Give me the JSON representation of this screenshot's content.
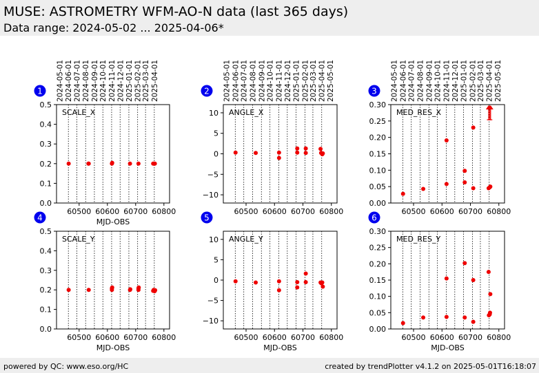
{
  "header": {
    "title": "MUSE: ASTROMETRY WFM-AO-N data (last 365 days)",
    "subtitle": "Data range: 2024-05-02 ... 2025-04-06*"
  },
  "footer": {
    "left": "powered by QC: www.eso.org/HC",
    "right": "created by trendPlotter v4.1.2 on 2025-05-01T16:18:07"
  },
  "colors": {
    "marker": "#ee0000",
    "badge": "#0000ee",
    "header_bg": "#eeeeee"
  },
  "chart_data": [
    {
      "type": "scatter",
      "badge": "1",
      "label": "SCALE_X",
      "xlabel": "MJD-OBS",
      "xlim": [
        60420,
        60820
      ],
      "xticks": [
        60500,
        60600,
        60700,
        60800
      ],
      "ylim": [
        0,
        0.5
      ],
      "yticks": [
        "0.0",
        "0.1",
        "0.2",
        "0.3",
        "0.4",
        "0.5"
      ],
      "date_ticks": [
        {
          "label": "2024-05-01",
          "mjd": 60431
        },
        {
          "label": "2024-06-01",
          "mjd": 60462
        },
        {
          "label": "2024-07-01",
          "mjd": 60492
        },
        {
          "label": "2024-08-01",
          "mjd": 60523
        },
        {
          "label": "2024-09-01",
          "mjd": 60554
        },
        {
          "label": "2024-10-01",
          "mjd": 60584
        },
        {
          "label": "2024-11-01",
          "mjd": 60615
        },
        {
          "label": "2024-12-01",
          "mjd": 60645
        },
        {
          "label": "2025-01-01",
          "mjd": 60676
        },
        {
          "label": "2025-02-01",
          "mjd": 60707
        },
        {
          "label": "2025-03-01",
          "mjd": 60735
        },
        {
          "label": "2025-04-01",
          "mjd": 60766
        }
      ],
      "grid_mjd": [
        60462,
        60492,
        60523,
        60554,
        60584,
        60615,
        60645,
        60676,
        60707,
        60735,
        60766
      ],
      "points": [
        {
          "x": 60463,
          "y": 0.2
        },
        {
          "x": 60533,
          "y": 0.2
        },
        {
          "x": 60534,
          "y": 0.2
        },
        {
          "x": 60616,
          "y": 0.2
        },
        {
          "x": 60617,
          "y": 0.204
        },
        {
          "x": 60680,
          "y": 0.2
        },
        {
          "x": 60710,
          "y": 0.2
        },
        {
          "x": 60762,
          "y": 0.2
        },
        {
          "x": 60765,
          "y": 0.2
        },
        {
          "x": 60768,
          "y": 0.2
        }
      ],
      "outliers": []
    },
    {
      "type": "scatter",
      "badge": "2",
      "label": "ANGLE_X",
      "xlabel": "",
      "xlim": [
        60420,
        60820
      ],
      "xticks": [
        60500,
        60600,
        60700,
        60800
      ],
      "ylim": [
        -12,
        12
      ],
      "yticks": [
        "−10",
        "−5",
        "0",
        "5",
        "10"
      ],
      "date_ticks": [
        {
          "label": "2024-05-01",
          "mjd": 60431
        },
        {
          "label": "2024-06-01",
          "mjd": 60462
        },
        {
          "label": "2024-07-01",
          "mjd": 60492
        },
        {
          "label": "2024-08-01",
          "mjd": 60523
        },
        {
          "label": "2024-09-01",
          "mjd": 60554
        },
        {
          "label": "2024-10-01",
          "mjd": 60584
        },
        {
          "label": "2024-11-01",
          "mjd": 60615
        },
        {
          "label": "2024-12-01",
          "mjd": 60645
        },
        {
          "label": "2025-01-01",
          "mjd": 60676
        },
        {
          "label": "2025-02-01",
          "mjd": 60707
        },
        {
          "label": "2025-03-01",
          "mjd": 60735
        },
        {
          "label": "2025-04-01",
          "mjd": 60766
        },
        {
          "label": "2025-05-01",
          "mjd": 60796
        }
      ],
      "grid_mjd": [
        60462,
        60492,
        60523,
        60554,
        60584,
        60615,
        60645,
        60676,
        60707,
        60735,
        60766
      ],
      "points": [
        {
          "x": 60463,
          "y": 0.3
        },
        {
          "x": 60534,
          "y": 0.2
        },
        {
          "x": 60616,
          "y": 0.3
        },
        {
          "x": 60616,
          "y": -1.0
        },
        {
          "x": 60680,
          "y": 1.3
        },
        {
          "x": 60680,
          "y": 0.3
        },
        {
          "x": 60710,
          "y": 1.3
        },
        {
          "x": 60710,
          "y": 0.2
        },
        {
          "x": 60762,
          "y": 1.2
        },
        {
          "x": 60764,
          "y": 0.2
        },
        {
          "x": 60768,
          "y": -0.1
        },
        {
          "x": 60770,
          "y": 0.1
        }
      ],
      "outliers": []
    },
    {
      "type": "scatter",
      "badge": "3",
      "label": "MED_RES_X",
      "xlabel": "",
      "xlim": [
        60420,
        60820
      ],
      "xticks": [
        60500,
        60600,
        60700,
        60800
      ],
      "ylim": [
        0,
        0.3
      ],
      "yticks": [
        "0.00",
        "0.05",
        "0.10",
        "0.15",
        "0.20",
        "0.25",
        "0.30"
      ],
      "date_ticks": [
        {
          "label": "2024-05-01",
          "mjd": 60431
        },
        {
          "label": "2024-06-01",
          "mjd": 60462
        },
        {
          "label": "2024-07-01",
          "mjd": 60492
        },
        {
          "label": "2024-08-01",
          "mjd": 60523
        },
        {
          "label": "2024-09-01",
          "mjd": 60554
        },
        {
          "label": "2024-10-01",
          "mjd": 60584
        },
        {
          "label": "2024-11-01",
          "mjd": 60615
        },
        {
          "label": "2024-12-01",
          "mjd": 60645
        },
        {
          "label": "2025-01-01",
          "mjd": 60676
        },
        {
          "label": "2025-02-01",
          "mjd": 60707
        },
        {
          "label": "2025-03-01",
          "mjd": 60735
        },
        {
          "label": "2025-04-01",
          "mjd": 60766
        },
        {
          "label": "2025-05-01",
          "mjd": 60796
        }
      ],
      "grid_mjd": [
        60462,
        60492,
        60523,
        60554,
        60584,
        60615,
        60645,
        60676,
        60707,
        60735,
        60766
      ],
      "points": [
        {
          "x": 60463,
          "y": 0.028
        },
        {
          "x": 60534,
          "y": 0.043
        },
        {
          "x": 60616,
          "y": 0.191
        },
        {
          "x": 60616,
          "y": 0.058
        },
        {
          "x": 60680,
          "y": 0.098
        },
        {
          "x": 60680,
          "y": 0.063
        },
        {
          "x": 60710,
          "y": 0.23
        },
        {
          "x": 60710,
          "y": 0.045
        },
        {
          "x": 60764,
          "y": 0.045
        },
        {
          "x": 60768,
          "y": 0.048
        },
        {
          "x": 60770,
          "y": 0.05
        }
      ],
      "outliers": [
        60764,
        60768,
        60771
      ]
    },
    {
      "type": "scatter",
      "badge": "4",
      "label": "SCALE_Y",
      "xlabel": "MJD-OBS",
      "xlim": [
        60420,
        60820
      ],
      "xticks": [
        60500,
        60600,
        60700,
        60800
      ],
      "ylim": [
        0,
        0.5
      ],
      "yticks": [
        "0.0",
        "0.1",
        "0.2",
        "0.3",
        "0.4",
        "0.5"
      ],
      "date_ticks": [],
      "grid_mjd": [
        60462,
        60492,
        60523,
        60554,
        60584,
        60615,
        60645,
        60676,
        60707,
        60735,
        60766
      ],
      "points": [
        {
          "x": 60463,
          "y": 0.2
        },
        {
          "x": 60534,
          "y": 0.2
        },
        {
          "x": 60616,
          "y": 0.2
        },
        {
          "x": 60616,
          "y": 0.208
        },
        {
          "x": 60617,
          "y": 0.212
        },
        {
          "x": 60680,
          "y": 0.2
        },
        {
          "x": 60681,
          "y": 0.203
        },
        {
          "x": 60710,
          "y": 0.2
        },
        {
          "x": 60710,
          "y": 0.208
        },
        {
          "x": 60711,
          "y": 0.212
        },
        {
          "x": 60762,
          "y": 0.195
        },
        {
          "x": 60764,
          "y": 0.2
        },
        {
          "x": 60767,
          "y": 0.193
        },
        {
          "x": 60769,
          "y": 0.198
        }
      ],
      "outliers": []
    },
    {
      "type": "scatter",
      "badge": "5",
      "label": "ANGLE_Y",
      "xlabel": "MJD-OBS",
      "xlim": [
        60420,
        60820
      ],
      "xticks": [
        60500,
        60600,
        60700,
        60800
      ],
      "ylim": [
        -12,
        12
      ],
      "yticks": [
        "−10",
        "−5",
        "0",
        "5",
        "10"
      ],
      "date_ticks": [],
      "grid_mjd": [
        60462,
        60492,
        60523,
        60554,
        60584,
        60615,
        60645,
        60676,
        60707,
        60735,
        60766
      ],
      "points": [
        {
          "x": 60463,
          "y": -0.3
        },
        {
          "x": 60534,
          "y": -0.6
        },
        {
          "x": 60616,
          "y": -0.3
        },
        {
          "x": 60616,
          "y": -2.5
        },
        {
          "x": 60680,
          "y": -0.5
        },
        {
          "x": 60680,
          "y": -1.8
        },
        {
          "x": 60710,
          "y": 1.6
        },
        {
          "x": 60710,
          "y": -0.5
        },
        {
          "x": 60762,
          "y": -0.6
        },
        {
          "x": 60765,
          "y": -0.8
        },
        {
          "x": 60768,
          "y": -0.6
        },
        {
          "x": 60770,
          "y": -1.6
        }
      ],
      "outliers": []
    },
    {
      "type": "scatter",
      "badge": "6",
      "label": "MED_RES_Y",
      "xlabel": "MJD-OBS",
      "xlim": [
        60420,
        60820
      ],
      "xticks": [
        60500,
        60600,
        60700,
        60800
      ],
      "ylim": [
        0,
        0.3
      ],
      "yticks": [
        "0.00",
        "0.05",
        "0.10",
        "0.15",
        "0.20",
        "0.25",
        "0.30"
      ],
      "date_ticks": [],
      "grid_mjd": [
        60462,
        60492,
        60523,
        60554,
        60584,
        60615,
        60645,
        60676,
        60707,
        60735,
        60766
      ],
      "points": [
        {
          "x": 60463,
          "y": 0.018
        },
        {
          "x": 60534,
          "y": 0.035
        },
        {
          "x": 60616,
          "y": 0.155
        },
        {
          "x": 60616,
          "y": 0.037
        },
        {
          "x": 60680,
          "y": 0.202
        },
        {
          "x": 60680,
          "y": 0.035
        },
        {
          "x": 60710,
          "y": 0.15
        },
        {
          "x": 60710,
          "y": 0.022
        },
        {
          "x": 60764,
          "y": 0.175
        },
        {
          "x": 60765,
          "y": 0.042
        },
        {
          "x": 60768,
          "y": 0.045
        },
        {
          "x": 60769,
          "y": 0.05
        },
        {
          "x": 60770,
          "y": 0.107
        }
      ],
      "outliers": []
    }
  ]
}
